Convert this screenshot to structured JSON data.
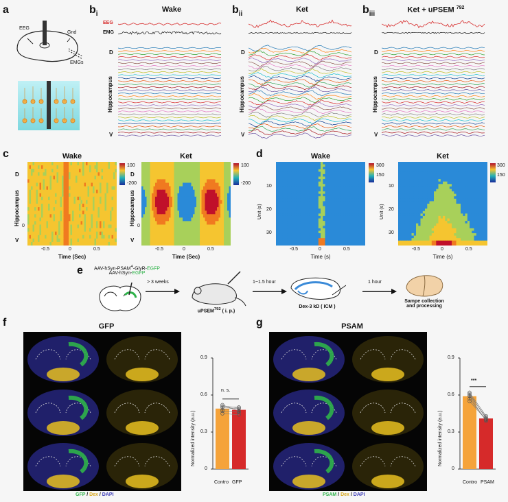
{
  "labels": {
    "a": "a",
    "b": "b",
    "bi": "i",
    "bii": "ii",
    "biii": "iii",
    "c": "c",
    "d": "d",
    "e": "e",
    "f": "f",
    "g": "g"
  },
  "panel_a": {
    "eeg": "EEG",
    "gnd": "Gnd",
    "emgs": "EMGs"
  },
  "panel_b": {
    "titles": [
      "Wake",
      "Ket",
      "Ket + uPSEM"
    ],
    "titles_sup": "792",
    "eeg": "EEG",
    "emg": "EMG",
    "axis_top": "D",
    "axis_bottom": "V",
    "axis_label": "Hippocampus",
    "trace_colors": [
      "#1f77b4",
      "#ff7f0e",
      "#2ca02c",
      "#d62728",
      "#9467bd",
      "#8c564b",
      "#e377c2",
      "#7f7f7f",
      "#bcbd22",
      "#17becf",
      "#0b3d91",
      "#e6550d",
      "#31a354",
      "#a50f15",
      "#6a51a3"
    ]
  },
  "panel_c": {
    "titles": [
      "Wake",
      "Ket"
    ],
    "colorbar_wake": [
      "100",
      "-200"
    ],
    "colorbar_ket": [
      "100",
      "-200"
    ],
    "xlabel": "Time (Sec)",
    "xticks": [
      "-0.5",
      "0",
      "0.5"
    ],
    "axis_top": "D",
    "axis_bottom": "V",
    "axis_label": "Hippocampus",
    "ytick": "0"
  },
  "panel_d": {
    "titles": [
      "Wake",
      "Ket"
    ],
    "colorbar": [
      "300",
      "150"
    ],
    "xlabel": "Time (s)",
    "xticks": [
      "-0.5",
      "0",
      "0.5"
    ],
    "ylabel": "Unit (s)",
    "yticks": [
      "10",
      "20",
      "30"
    ]
  },
  "panel_e": {
    "virus_line1": "AAV-hSyn-PSAM",
    "virus_line1_sup": "4",
    "virus_line1_rest": "-GlyR-",
    "virus_line1_green": "EGFP",
    "virus_line2": "AAV-hSyn-",
    "virus_line2_green": "EGFP",
    "step1": "> 3 weeks",
    "drug": "uPSEM",
    "drug_sup": "792",
    "drug_rest": " ( i. p.)",
    "step2": "1~1.5 hour",
    "tracer": "Dex-3 kD ( ICM )",
    "step3": "1  hour",
    "final_line1": "Sampe collection",
    "final_line2": "and processing"
  },
  "panel_f": {
    "title": "GFP",
    "legend_a": "GFP",
    "legend_b": "Dex",
    "legend_c": "DAPI",
    "ylabel": "Normalized intensity (a.u.)",
    "sig": "n. s.",
    "chart_data": {
      "type": "bar",
      "categories": [
        "Contro",
        "GFP"
      ],
      "values": [
        0.49,
        0.48
      ],
      "ylim": [
        0,
        0.9
      ],
      "yticks": [
        "0.9",
        "0.6",
        "0.3",
        "0"
      ],
      "colors": [
        "#f5a33a",
        "#d62a2a"
      ]
    }
  },
  "panel_g": {
    "title": "PSAM",
    "legend_a": "PSAM",
    "legend_b": "Dex",
    "legend_c": "DAPI",
    "ylabel": "Normalized intensity (a.u.)",
    "sig": "***",
    "chart_data": {
      "type": "bar",
      "categories": [
        "Contro",
        "PSAM"
      ],
      "values": [
        0.59,
        0.41
      ],
      "ylim": [
        0,
        0.9
      ],
      "yticks": [
        "0.9",
        "0.6",
        "0.3",
        "0"
      ],
      "colors": [
        "#f5a33a",
        "#d62a2a"
      ]
    }
  },
  "colors": {
    "green": "#2fb34a",
    "yellow": "#e8c020",
    "blue": "#3b3bb8",
    "red": "#d62a2a",
    "orange": "#f5a33a"
  }
}
